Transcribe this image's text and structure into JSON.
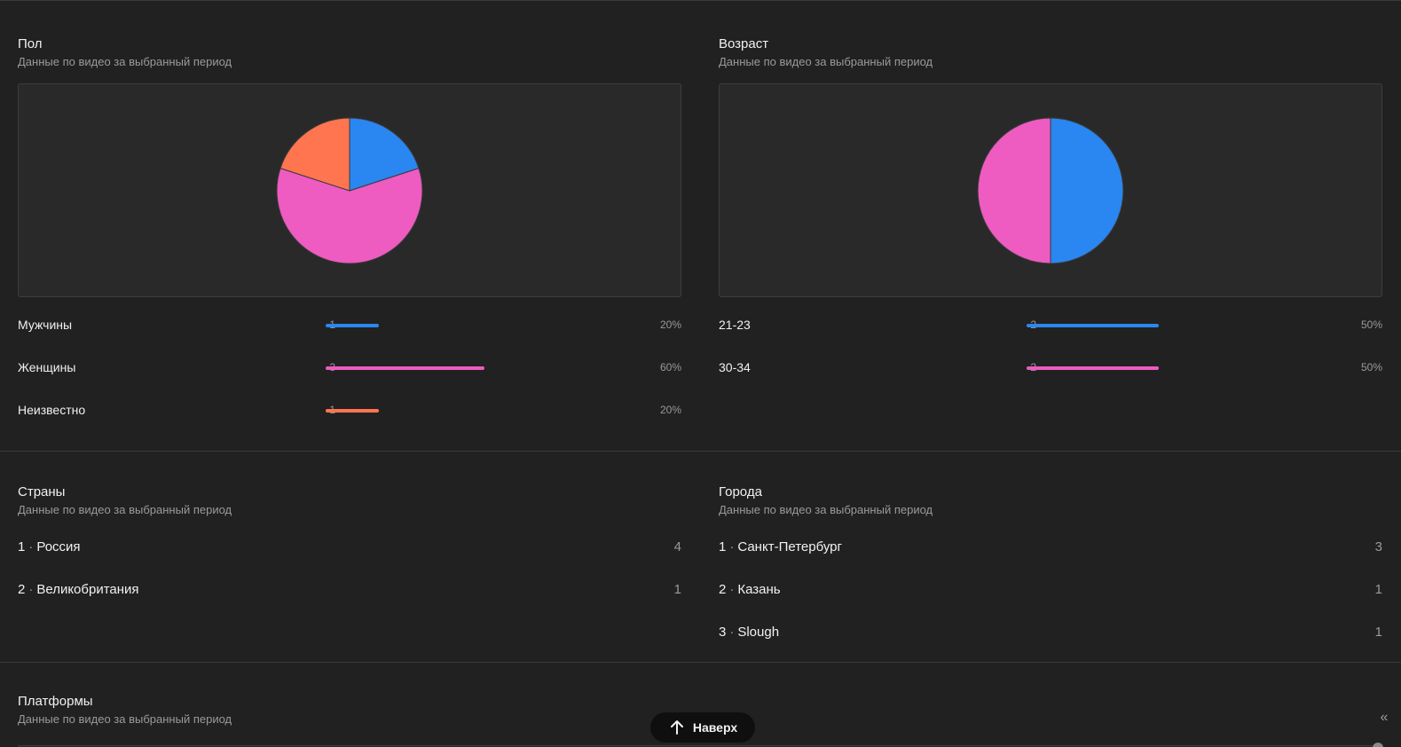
{
  "gender": {
    "title": "Пол",
    "subtitle": "Данные по видео за выбранный период",
    "rows": [
      {
        "label": "Мужчины",
        "count": "1",
        "percent": "20%",
        "fraction": 0.2,
        "color": "#2a86f0"
      },
      {
        "label": "Женщины",
        "count": "3",
        "percent": "60%",
        "fraction": 0.6,
        "color": "#ee5bc1"
      },
      {
        "label": "Неизвестно",
        "count": "1",
        "percent": "20%",
        "fraction": 0.2,
        "color": "#ff7550"
      }
    ]
  },
  "age": {
    "title": "Возраст",
    "subtitle": "Данные по видео за выбранный период",
    "rows": [
      {
        "label": "21-23",
        "count": "2",
        "percent": "50%",
        "fraction": 0.5,
        "color": "#2a86f0"
      },
      {
        "label": "30-34",
        "count": "2",
        "percent": "50%",
        "fraction": 0.5,
        "color": "#ee5bc1"
      }
    ]
  },
  "countries": {
    "title": "Страны",
    "subtitle": "Данные по видео за выбранный период",
    "items": [
      {
        "index": "1",
        "name": "Россия",
        "count": "4"
      },
      {
        "index": "2",
        "name": "Великобритания",
        "count": "1"
      }
    ]
  },
  "cities": {
    "title": "Города",
    "subtitle": "Данные по видео за выбранный период",
    "items": [
      {
        "index": "1",
        "name": "Санкт-Петербург",
        "count": "3"
      },
      {
        "index": "2",
        "name": "Казань",
        "count": "1"
      },
      {
        "index": "3",
        "name": "Slough",
        "count": "1"
      }
    ]
  },
  "platforms": {
    "title": "Платформы",
    "subtitle": "Данные по видео за выбранный период"
  },
  "scroll_top_button": {
    "label": "Наверх",
    "icon": "arrow-up-icon"
  },
  "collapse": {
    "glyph": "«",
    "icon": "double-chevron-left-icon"
  },
  "separator": "·",
  "chart_data": [
    {
      "type": "pie",
      "series": [
        {
          "values": [
            1,
            3,
            1
          ]
        }
      ],
      "categories": [
        "Мужчины",
        "Женщины",
        "Неизвестно"
      ],
      "colors": [
        "#2a86f0",
        "#ee5bc1",
        "#ff7550"
      ]
    },
    {
      "type": "pie",
      "series": [
        {
          "values": [
            2,
            2
          ]
        }
      ],
      "categories": [
        "21-23",
        "30-34"
      ],
      "colors": [
        "#2a86f0",
        "#ee5bc1"
      ]
    }
  ]
}
